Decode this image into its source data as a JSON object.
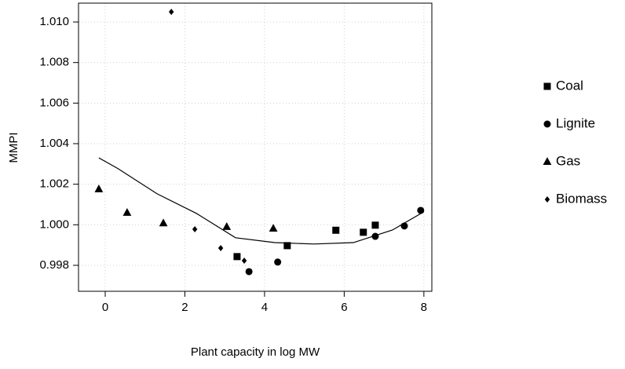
{
  "chart_data": {
    "type": "scatter",
    "x_label": "Plant capacity in log MW",
    "y_label": "MMPI",
    "xlim": [
      -0.67,
      8.2
    ],
    "ylim": [
      0.99672,
      1.01093
    ],
    "xticks": [
      0,
      2,
      4,
      6,
      8
    ],
    "yticks": [
      {
        "value": 0.998,
        "label": "0.998"
      },
      {
        "value": 1.0,
        "label": "1.000"
      },
      {
        "value": 1.002,
        "label": "1.002"
      },
      {
        "value": 1.004,
        "label": "1.004"
      },
      {
        "value": 1.006,
        "label": "1.006"
      },
      {
        "value": 1.008,
        "label": "1.008"
      },
      {
        "value": 1.01,
        "label": "1.010"
      }
    ],
    "grid": true,
    "legend_position": "right",
    "series": [
      {
        "name": "Coal",
        "color": "#000000",
        "marker": "square",
        "x": [
          3.31,
          4.57,
          5.79,
          6.48,
          6.78
        ],
        "values": [
          0.99843,
          0.99897,
          0.99973,
          0.99963,
          0.99998
        ]
      },
      {
        "name": "Lignite",
        "color": "#000000",
        "marker": "circle",
        "x": [
          3.61,
          4.33,
          6.78,
          7.51,
          7.92
        ],
        "values": [
          0.99769,
          0.99816,
          0.99943,
          0.99994,
          1.00071
        ]
      },
      {
        "name": "Gas",
        "color": "#000000",
        "marker": "triangle",
        "x": [
          -0.16,
          0.55,
          1.46,
          3.05,
          4.22
        ],
        "values": [
          1.00176,
          1.0006,
          1.00008,
          0.9999,
          0.99982
        ]
      },
      {
        "name": "Biomass",
        "color": "#000000",
        "marker": "diamond",
        "x": [
          1.66,
          2.25,
          2.9,
          3.49
        ],
        "values": [
          1.0105,
          0.99978,
          0.99885,
          0.99823
        ]
      }
    ],
    "fit": {
      "color": "#000000",
      "x": [
        -0.16,
        0.32,
        1.3,
        2.29,
        3.27,
        4.26,
        5.24,
        6.23,
        7.21,
        8.0
      ],
      "values": [
        1.0033,
        1.00277,
        1.00153,
        1.00056,
        0.99936,
        0.99912,
        0.99905,
        0.99912,
        0.99974,
        1.00064
      ]
    }
  }
}
